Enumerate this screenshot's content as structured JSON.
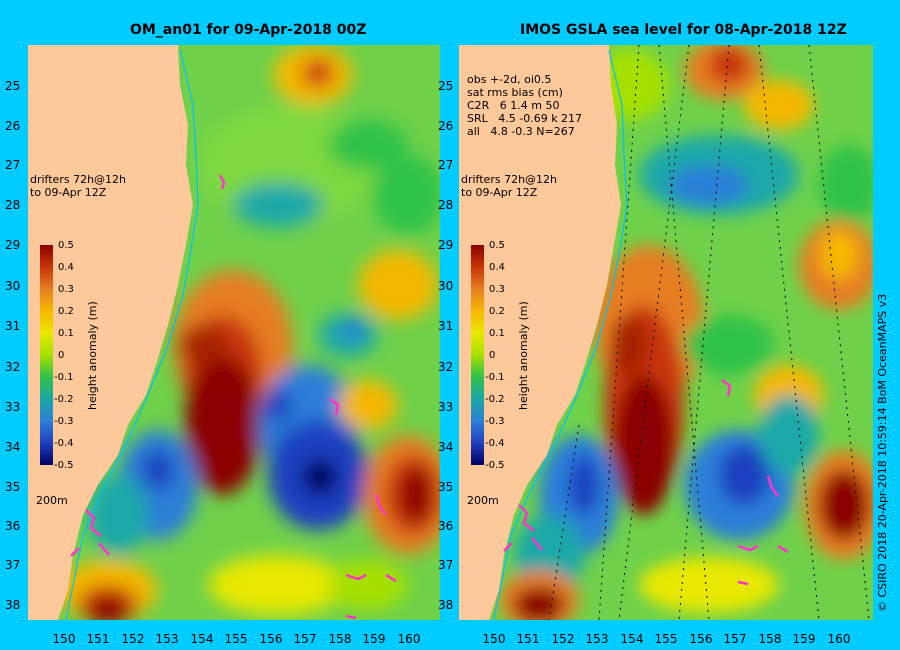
{
  "left": {
    "title": "OM_an01 for 09-Apr-2018 00Z",
    "drifters": "drifters 72h@12h\nto 09-Apr 12Z",
    "contour_label": "200m"
  },
  "right": {
    "title": "IMOS GSLA sea level  for 08-Apr-2018 12Z",
    "stats": "obs +-2d, oi0.5\nsat rms bias (cm)\nC2R   6 1.4 m 50\nSRL   4.5 -0.69 k 217\nall   4.8 -0.3 N=267",
    "drifters": "drifters 72h@12h\nto 09-Apr 12Z",
    "contour_label": "200m"
  },
  "colorbar": {
    "label": "height anomaly (m)",
    "ticks": [
      "0.5",
      "0.4",
      "0.3",
      "0.2",
      "0.1",
      "0",
      "-0.1",
      "-0.2",
      "-0.3",
      "-0.4",
      "-0.5"
    ],
    "colors": [
      "#8b0000",
      "#c8360a",
      "#e67e22",
      "#f5b800",
      "#e8e800",
      "#a6e000",
      "#2fc24a",
      "#1aa8a8",
      "#2b7fd8",
      "#1f3fc0",
      "#000060"
    ]
  },
  "y_ticks": [
    "25",
    "26",
    "27",
    "28",
    "29",
    "30",
    "31",
    "32",
    "33",
    "34",
    "35",
    "36",
    "37",
    "38"
  ],
  "x_ticks": [
    "150",
    "151",
    "152",
    "153",
    "154",
    "155",
    "156",
    "157",
    "158",
    "159",
    "160"
  ],
  "credit": "© CSIRO 2018  20-Apr-2018 10:59:14 BoM OceanMAPS v3",
  "colors": {
    "background": "#00ccff",
    "land": "#fdc89a",
    "drifter": "#ff33cc"
  }
}
